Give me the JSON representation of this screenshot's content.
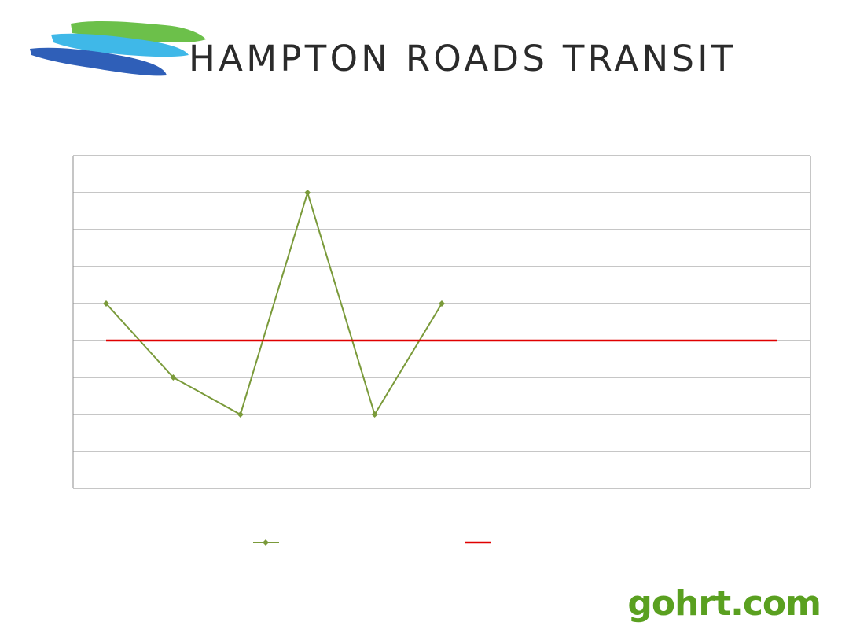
{
  "header": {
    "brand_name": "HAMPTON ROADS TRANSIT"
  },
  "footer": {
    "site_url": "gohrt.com"
  },
  "colors": {
    "series_actual": "#7a9a3a",
    "series_target": "#e00000",
    "gridline": "#8c8c8c",
    "logo_green": "#6cc04a",
    "logo_cyan": "#3fb8e8",
    "logo_blue": "#2f5fb8",
    "url_green": "#5aa020"
  },
  "chart_data": {
    "type": "line",
    "title": "",
    "xlabel": "",
    "ylabel": "",
    "ylim": [
      0,
      9
    ],
    "grid": true,
    "legend": "bottom",
    "x_count": 11,
    "series": [
      {
        "values": [
          5,
          3,
          2,
          8,
          2,
          5,
          null,
          null,
          null,
          null,
          null
        ],
        "marker": "diamond"
      },
      {
        "values": [
          4,
          4,
          4,
          4,
          4,
          4,
          4,
          4,
          4,
          4,
          4
        ],
        "marker": "none"
      }
    ]
  }
}
